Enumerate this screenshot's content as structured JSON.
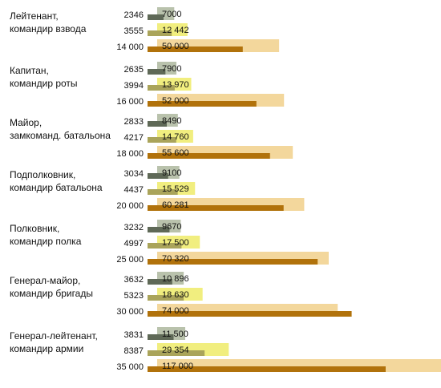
{
  "chart_data": {
    "type": "bar",
    "colors": {
      "old_bar": "#5f6957",
      "old_label_bg": "#b9c2ac",
      "mid_bar": "#aaa45a",
      "mid_label_bg": "#f1ee7f",
      "new_bar": "#b1720b",
      "new_label_bg": "#f3d79c",
      "text": "#111111"
    },
    "groups": [
      {
        "title_line1": "Лейтенант,",
        "title_line2": "командир взвода",
        "left_labels": [
          "2346",
          "3555",
          "14 000"
        ],
        "bar_values": [
          2346,
          3555,
          14000
        ],
        "label_values": [
          7000,
          12442,
          50000
        ],
        "label_texts": [
          "7000",
          "12 442",
          "50 000"
        ]
      },
      {
        "title_line1": "Капитан,",
        "title_line2": "командир роты",
        "left_labels": [
          "2635",
          "3994",
          "16 000"
        ],
        "bar_values": [
          2635,
          3994,
          16000
        ],
        "label_values": [
          7900,
          13970,
          52000
        ],
        "label_texts": [
          "7900",
          "13 970",
          "52 000"
        ]
      },
      {
        "title_line1": "Майор,",
        "title_line2": "замкоманд. батальона",
        "left_labels": [
          "2833",
          "4217",
          "18 000"
        ],
        "bar_values": [
          2833,
          4217,
          18000
        ],
        "label_values": [
          8490,
          14760,
          55600
        ],
        "label_texts": [
          "8490",
          "14 760",
          "55 600"
        ]
      },
      {
        "title_line1": "Подполковник,",
        "title_line2": "командир батальона",
        "left_labels": [
          "3034",
          "4437",
          "20 000"
        ],
        "bar_values": [
          3034,
          4437,
          20000
        ],
        "label_values": [
          9100,
          15529,
          60281
        ],
        "label_texts": [
          "9100",
          "15 529",
          "60 281"
        ]
      },
      {
        "title_line1": "Полковник,",
        "title_line2": "командир полка",
        "left_labels": [
          "3232",
          "4997",
          "25 000"
        ],
        "bar_values": [
          3232,
          4997,
          25000
        ],
        "label_values": [
          9670,
          17500,
          70320
        ],
        "label_texts": [
          "9670",
          "17 500",
          "70 320"
        ]
      },
      {
        "title_line1": "Генерал-майор,",
        "title_line2": "командир бригады",
        "left_labels": [
          "3632",
          "5323",
          "30 000"
        ],
        "bar_values": [
          3632,
          5323,
          30000
        ],
        "label_values": [
          10896,
          18630,
          74000
        ],
        "label_texts": [
          "10 896",
          "18 630",
          "74 000"
        ]
      },
      {
        "title_line1": "Генерал-лейтенант,",
        "title_line2": "командир армии",
        "left_labels": [
          "3831",
          "8387",
          "35 000"
        ],
        "bar_values": [
          3831,
          8387,
          35000
        ],
        "label_values": [
          11500,
          29354,
          117000
        ],
        "label_texts": [
          "11 500",
          "29 354",
          "117 000"
        ]
      }
    ]
  }
}
